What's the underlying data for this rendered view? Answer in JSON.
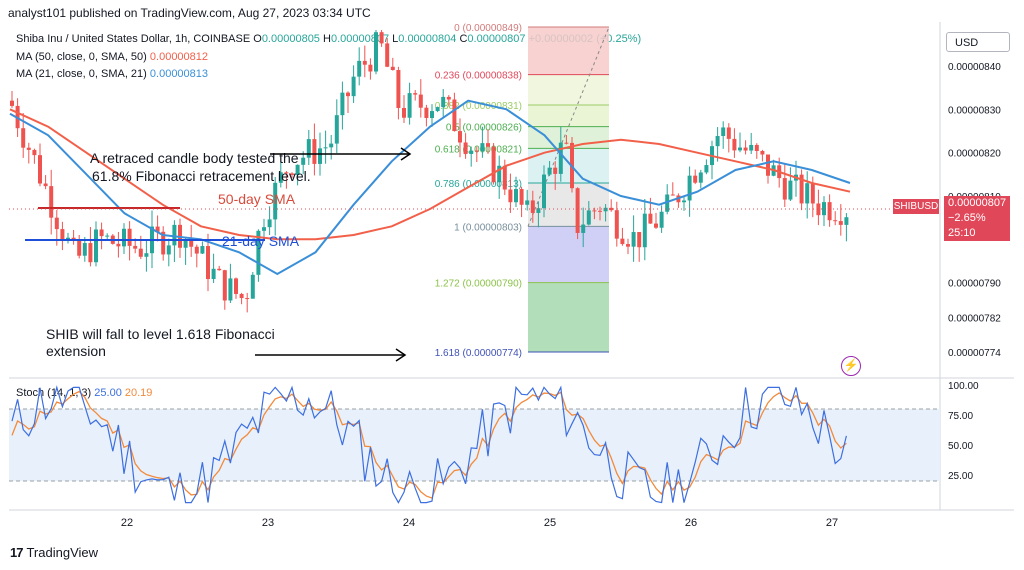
{
  "header": {
    "published": "analyst101 published on TradingView.com, Aug 27, 2023 03:34 UTC"
  },
  "currency_button": "USD",
  "legend": {
    "symbol": "Shiba Inu / United States Dollar, 1h, COINBASE",
    "ohlc": {
      "o": "O",
      "o_val": "0.00000805",
      "h": "H",
      "h_val": "0.00000807",
      "l": "L",
      "l_val": "0.00000804",
      "c": "C",
      "c_val": "0.00000807",
      "change": "+0.00000002 (+0.25%)"
    },
    "ma50_label": "MA (50, close, 0, SMA, 50)",
    "ma50_val": "0.00000812",
    "ma21_label": "MA (21, close, 0, SMA, 21)",
    "ma21_val": "0.00000813",
    "stoch_label": "Stoch (14, 1, 3)",
    "stoch_k": "25.00",
    "stoch_d": "20.19"
  },
  "price_tag": {
    "symbol": "SHIBUSD",
    "price": "0.00000807",
    "change": "−2.65%",
    "countdown": "25:10"
  },
  "footer": {
    "brand": "TradingView"
  },
  "colors": {
    "up": "#26a69a",
    "down": "#ef5350",
    "ma50": "#f2604a",
    "ma21": "#3a8fd8",
    "stoch_k": "#3d6fe0",
    "stoch_d": "#f28a3c",
    "fib_red": "#f7c9c9",
    "fib_green": "#d7efc6",
    "fib_blue": "#c8c8f4",
    "fib_dkgreen": "#a6d8ae",
    "price_red": "#e0485a"
  },
  "chart_data": {
    "type": "candlestick",
    "price_axis_ticks": [
      "0.00000840",
      "0.00000830",
      "0.00000820",
      "0.00000810",
      "0.00000790",
      "0.00000782",
      "0.00000774"
    ],
    "time_axis_ticks": [
      "22",
      "23",
      "24",
      "25",
      "26",
      "27"
    ],
    "stoch_axis_ticks": [
      "100.00",
      "75.00",
      "50.00",
      "25.00"
    ],
    "fibonacci": [
      {
        "ratio": "0",
        "price": "0.00000849",
        "label": "0 (0.00000849)"
      },
      {
        "ratio": "0.236",
        "price": "0.00000838",
        "label": "0.236 (0.00000838)"
      },
      {
        "ratio": "0.382",
        "price": "0.00000831",
        "label": "0.382 (0.00000831)"
      },
      {
        "ratio": "0.5",
        "price": "0.00000826",
        "label": "0.5 (0.00000826)"
      },
      {
        "ratio": "0.618",
        "price": "0.00000821",
        "label": "0.618 (0.00000821)"
      },
      {
        "ratio": "0.786",
        "price": "0.00000813",
        "label": "0.786 (0.00000813)"
      },
      {
        "ratio": "1",
        "price": "0.00000803",
        "label": "1 (0.00000803)"
      },
      {
        "ratio": "1.272",
        "price": "0.00000790",
        "label": "1.272 (0.00000790)"
      },
      {
        "ratio": "1.618",
        "price": "0.00000774",
        "label": "1.618 (0.00000774)"
      }
    ],
    "annotations": [
      {
        "text": "A retraced candle body tested the 61.8% Fibonacci retracement level."
      },
      {
        "text": "SHIB will fall to level 1.618 Fibonacci extension"
      },
      {
        "text": "50-day SMA"
      },
      {
        "text": "21-day SMA"
      }
    ],
    "ma50": [
      8.3e-06,
      8.26e-06,
      8.2e-06,
      8.14e-06,
      8.08e-06,
      8.03e-06,
      8.01e-06,
      8e-06,
      8e-06,
      8.01e-06,
      8.03e-06,
      8.07e-06,
      8.12e-06,
      8.17e-06,
      8.2e-06,
      8.22e-06,
      8.23e-06,
      8.22e-06,
      8.2e-06,
      8.18e-06,
      8.16e-06,
      8.13e-06,
      8.11e-06
    ],
    "ma21": [
      8.29e-06,
      8.24e-06,
      8.15e-06,
      8.06e-06,
      8.01e-06,
      8e-06,
      7.97e-06,
      7.92e-06,
      7.97e-06,
      8.08e-06,
      8.18e-06,
      8.26e-06,
      8.32e-06,
      8.3e-06,
      8.24e-06,
      8.14e-06,
      8.1e-06,
      8.08e-06,
      8.11e-06,
      8.16e-06,
      8.18e-06,
      8.16e-06,
      8.13e-06
    ]
  }
}
